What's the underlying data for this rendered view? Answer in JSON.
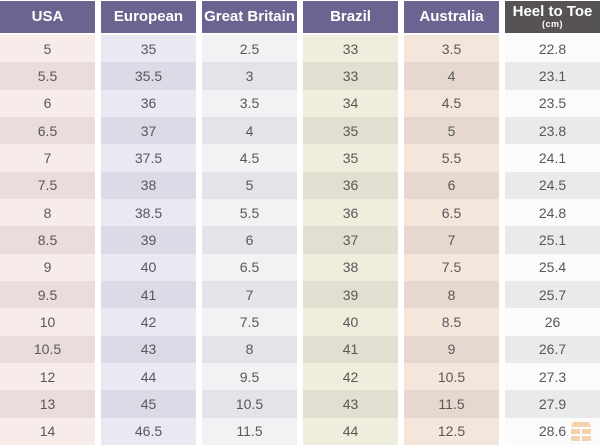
{
  "chart_data": {
    "type": "table",
    "columns": [
      {
        "label": "USA"
      },
      {
        "label": "European"
      },
      {
        "label": "Great Britain"
      },
      {
        "label": "Brazil"
      },
      {
        "label": "Australia"
      },
      {
        "label": "Heel to Toe",
        "sublabel": "(cm)"
      }
    ],
    "rows": [
      [
        "5",
        "35",
        "2.5",
        "33",
        "3.5",
        "22.8"
      ],
      [
        "5.5",
        "35.5",
        "3",
        "33",
        "4",
        "23.1"
      ],
      [
        "6",
        "36",
        "3.5",
        "34",
        "4.5",
        "23.5"
      ],
      [
        "6.5",
        "37",
        "4",
        "35",
        "5",
        "23.8"
      ],
      [
        "7",
        "37.5",
        "4.5",
        "35",
        "5.5",
        "24.1"
      ],
      [
        "7.5",
        "38",
        "5",
        "36",
        "6",
        "24.5"
      ],
      [
        "8",
        "38.5",
        "5.5",
        "36",
        "6.5",
        "24.8"
      ],
      [
        "8.5",
        "39",
        "6",
        "37",
        "7",
        "25.1"
      ],
      [
        "9",
        "40",
        "6.5",
        "38",
        "7.5",
        "25.4"
      ],
      [
        "9.5",
        "41",
        "7",
        "39",
        "8",
        "25.7"
      ],
      [
        "10",
        "42",
        "7.5",
        "40",
        "8.5",
        "26"
      ],
      [
        "10.5",
        "43",
        "8",
        "41",
        "9",
        "26.7"
      ],
      [
        "12",
        "44",
        "9.5",
        "42",
        "10.5",
        "27.3"
      ],
      [
        "13",
        "45",
        "10.5",
        "43",
        "11.5",
        "27.9"
      ],
      [
        "14",
        "46.5",
        "11.5",
        "44",
        "12.5",
        "28.6"
      ]
    ]
  },
  "colors": {
    "header_purple": "#6d6390",
    "header_dark": "#565256",
    "body_text": "#585858",
    "col_usa": "#f8ecea",
    "col_european": "#e9e8f3",
    "col_great_britain": "#f2f1f4",
    "col_brazil": "#efeedd",
    "col_australia": "#f5e6dc",
    "col_heel_to_toe": "#fcfbfb",
    "watermark_orange": "#eda14d"
  }
}
